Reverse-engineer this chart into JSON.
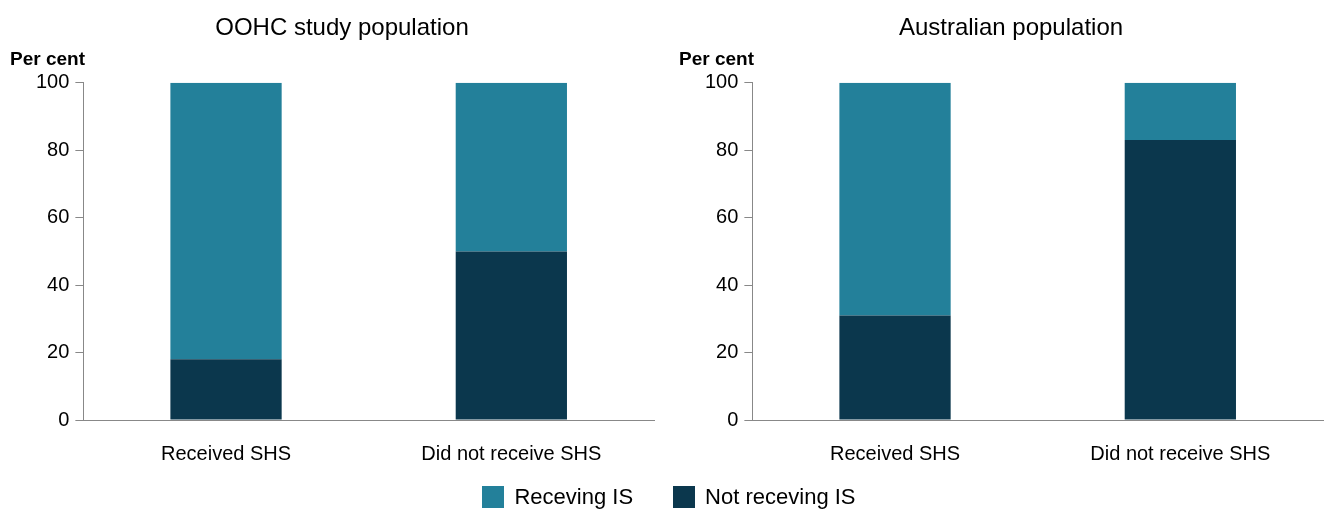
{
  "chart_data": [
    {
      "type": "bar",
      "title": "OOHC study population",
      "ylabel": "Per cent",
      "categories": [
        "Received SHS",
        "Did not receive SHS"
      ],
      "stacked": true,
      "ylim": [
        0,
        100
      ],
      "yticks": [
        0,
        20,
        40,
        60,
        80,
        100
      ],
      "grid": false,
      "legend": "bottom",
      "series": [
        {
          "name": "Not receving IS",
          "color": "#0b374d",
          "values": [
            18,
            50
          ]
        },
        {
          "name": "Receving IS",
          "color": "#23809a",
          "values": [
            82,
            50
          ]
        }
      ]
    },
    {
      "type": "bar",
      "title": "Australian population",
      "ylabel": "Per cent",
      "categories": [
        "Received SHS",
        "Did not receive SHS"
      ],
      "stacked": true,
      "ylim": [
        0,
        100
      ],
      "yticks": [
        0,
        20,
        40,
        60,
        80,
        100
      ],
      "grid": false,
      "series": [
        {
          "color": "#0b374d",
          "values": [
            31,
            83
          ]
        },
        {
          "color": "#23809a",
          "values": [
            69,
            17
          ]
        }
      ]
    }
  ]
}
